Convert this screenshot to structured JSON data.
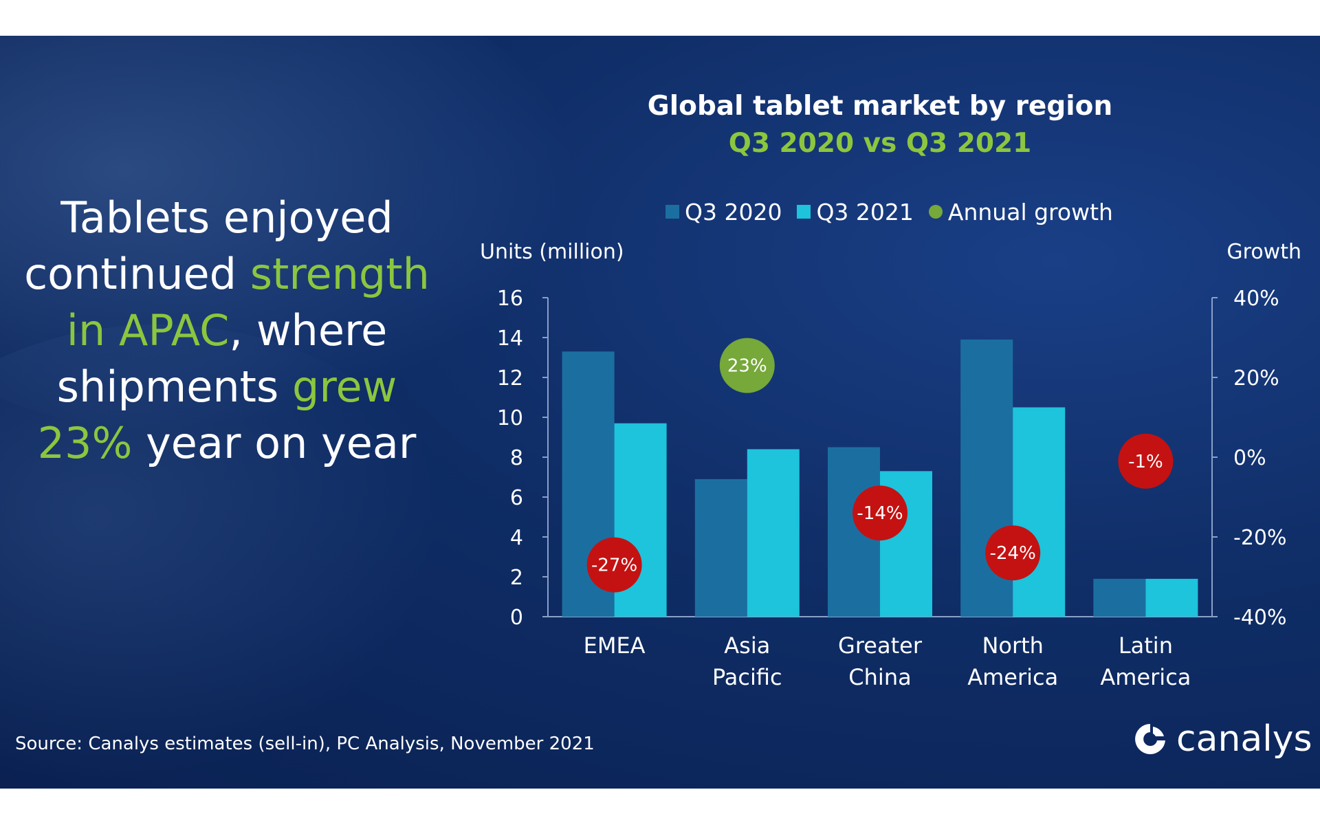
{
  "headline": {
    "l1": "Tablets enjoyed",
    "l2a": "continued ",
    "l2b": "strength",
    "l3a": "in APAC",
    "l3b": ", where",
    "l4a": "shipments ",
    "l4b": "grew",
    "l5a": "23%",
    "l5b": " year on year"
  },
  "source": "Source: Canalys estimates (sell-in), PC Analysis, November 2021",
  "logo": {
    "text": "canalys",
    "icon": "canalys-logo-icon"
  },
  "colors": {
    "q3_2020": "#1b6fa0",
    "q3_2021": "#1ec3dc",
    "growth_positive": "#76a83a",
    "growth_negative": "#c41212",
    "accent_green": "#8cc63f"
  },
  "chart_data": {
    "type": "bar",
    "title": "Global tablet market by region",
    "subtitle": "Q3 2020 vs Q3 2021",
    "ylabel": "Units (million)",
    "y2label": "Growth",
    "ylim": [
      0,
      16
    ],
    "yticks": [
      0,
      2,
      4,
      6,
      8,
      10,
      12,
      14,
      16
    ],
    "y2lim": [
      -40,
      40
    ],
    "y2ticks": [
      "-40%",
      "-20%",
      "0%",
      "20%",
      "40%"
    ],
    "categories": [
      [
        "EMEA"
      ],
      [
        "Asia",
        "Pacific"
      ],
      [
        "Greater",
        "China"
      ],
      [
        "North",
        "America"
      ],
      [
        "Latin",
        "America"
      ]
    ],
    "series": [
      {
        "name": "Q3 2020",
        "values": [
          13.3,
          6.9,
          8.5,
          13.9,
          1.9
        ]
      },
      {
        "name": "Q3 2021",
        "values": [
          9.7,
          8.4,
          7.3,
          10.5,
          1.9
        ]
      }
    ],
    "growth": {
      "name": "Annual growth",
      "values": [
        -27,
        23,
        -14,
        -24,
        -1
      ],
      "labels": [
        "-27%",
        "23%",
        "-14%",
        "-24%",
        "-1%"
      ]
    },
    "grid": false,
    "legend": "top"
  }
}
